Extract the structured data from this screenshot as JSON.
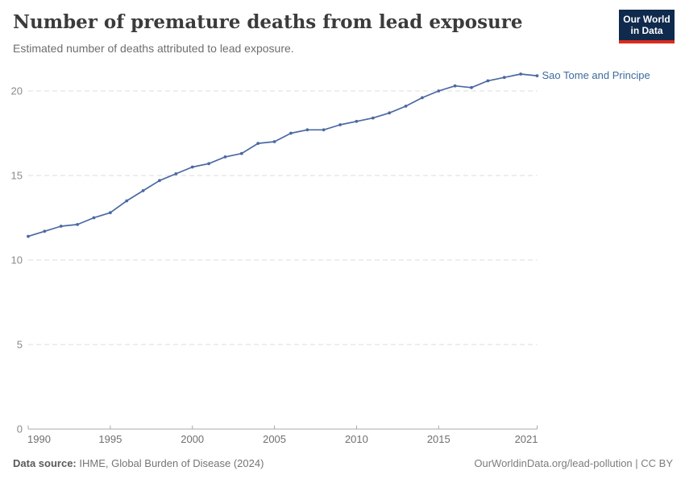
{
  "header": {
    "title": "Number of premature deaths from lead exposure",
    "subtitle": "Estimated number of deaths attributed to lead exposure.",
    "logo": {
      "line1": "Our World",
      "line2": "in Data",
      "bg_color": "#102a4d",
      "accent_color": "#dd2b1c"
    }
  },
  "chart_data": {
    "type": "line",
    "title": "Number of premature deaths from lead exposure",
    "xlabel": "",
    "ylabel": "",
    "x": [
      1990,
      1991,
      1992,
      1993,
      1994,
      1995,
      1996,
      1997,
      1998,
      1999,
      2000,
      2001,
      2002,
      2003,
      2004,
      2005,
      2006,
      2007,
      2008,
      2009,
      2010,
      2011,
      2012,
      2013,
      2014,
      2015,
      2016,
      2017,
      2018,
      2019,
      2020,
      2021
    ],
    "series": [
      {
        "name": "Sao Tome and Principe",
        "color": "#4a69a2",
        "label_color": "#3d6a9e",
        "values": [
          11.4,
          11.7,
          12.0,
          12.1,
          12.5,
          12.8,
          13.5,
          14.1,
          14.7,
          15.1,
          15.5,
          15.7,
          16.1,
          16.3,
          16.9,
          17.0,
          17.5,
          17.7,
          17.7,
          18.0,
          18.2,
          18.4,
          18.7,
          19.1,
          19.6,
          20.0,
          20.3,
          20.2,
          20.6,
          20.8,
          21.0,
          20.9
        ]
      }
    ],
    "xticks": [
      1990,
      1995,
      2000,
      2005,
      2010,
      2015,
      2021
    ],
    "yticks": [
      0,
      5,
      10,
      15,
      20
    ],
    "xlim": [
      1990,
      2021
    ],
    "ylim": [
      0,
      21.5
    ],
    "grid": "horizontal-dashed",
    "legend": "end-of-line-label",
    "gridline_color": "#dcdcdc",
    "axis_color": "#a8a8a8",
    "ytick_label_color": "#8a8a8a",
    "xtick_label_color": "#6f6f6f"
  },
  "footer": {
    "source_label": "Data source:",
    "source_text": " IHME, Global Burden of Disease (2024)",
    "credit": "OurWorldinData.org/lead-pollution | CC BY"
  }
}
